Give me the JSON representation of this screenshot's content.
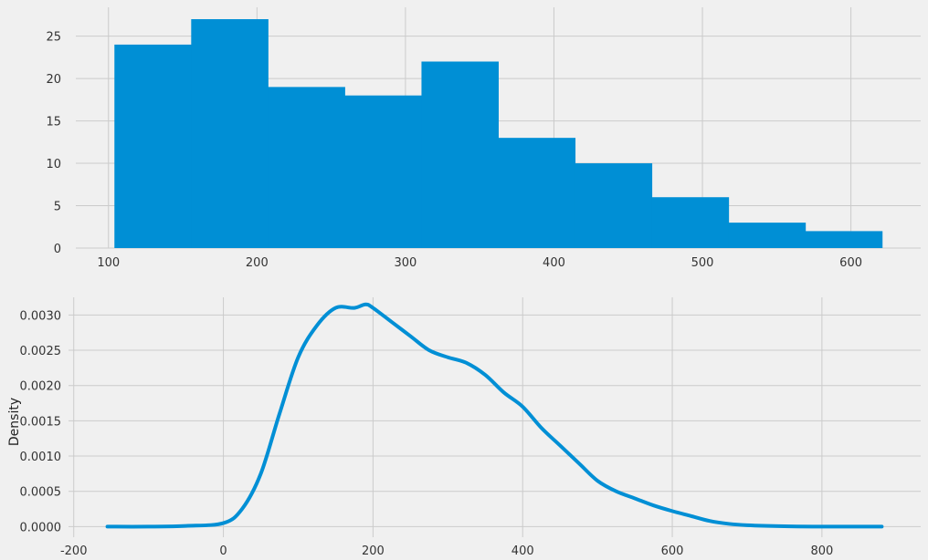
{
  "chart_data": [
    {
      "type": "bar",
      "subtype": "histogram",
      "title": "",
      "xlabel": "",
      "ylabel": "",
      "bin_edges": [
        104,
        155.7,
        207.4,
        259.1,
        310.8,
        362.5,
        414.2,
        465.9,
        517.6,
        569.3,
        621
      ],
      "values": [
        24,
        27,
        19,
        18,
        22,
        13,
        10,
        6,
        3,
        2
      ],
      "xlim": [
        78,
        647
      ],
      "ylim": [
        0,
        28.4
      ],
      "xticks": [
        100,
        200,
        300,
        400,
        500,
        600
      ],
      "yticks": [
        0,
        5,
        10,
        15,
        20,
        25
      ],
      "grid": true,
      "color": "#008fd5",
      "background": "#f0f0f0"
    },
    {
      "type": "line",
      "subtype": "density",
      "title": "",
      "xlabel": "",
      "ylabel": "Density",
      "x": [
        -155,
        -100,
        -50,
        0,
        25,
        50,
        75,
        100,
        125,
        150,
        175,
        190,
        200,
        225,
        250,
        275,
        300,
        325,
        350,
        375,
        400,
        425,
        450,
        475,
        500,
        525,
        550,
        575,
        600,
        625,
        650,
        675,
        700,
        750,
        800,
        880
      ],
      "y": [
        0,
        0,
        1e-05,
        5e-05,
        0.00025,
        0.00075,
        0.0016,
        0.0024,
        0.00285,
        0.0031,
        0.0031,
        0.00315,
        0.0031,
        0.0029,
        0.0027,
        0.0025,
        0.0024,
        0.00232,
        0.00215,
        0.0019,
        0.0017,
        0.0014,
        0.00115,
        0.0009,
        0.00065,
        0.0005,
        0.0004,
        0.0003,
        0.00022,
        0.00015,
        8e-05,
        4e-05,
        2e-05,
        5e-06,
        0,
        0
      ],
      "xlim": [
        -207,
        932
      ],
      "ylim": [
        -0.00015,
        0.00325
      ],
      "xticks": [
        -200,
        0,
        200,
        400,
        600,
        800
      ],
      "yticks": [
        0.0,
        0.0005,
        0.001,
        0.0015,
        0.002,
        0.0025,
        0.003
      ],
      "ytick_labels": [
        "0.0000",
        "0.0005",
        "0.0010",
        "0.0015",
        "0.0020",
        "0.0025",
        "0.0030"
      ],
      "grid": true,
      "color": "#008fd5",
      "background": "#f0f0f0"
    }
  ]
}
